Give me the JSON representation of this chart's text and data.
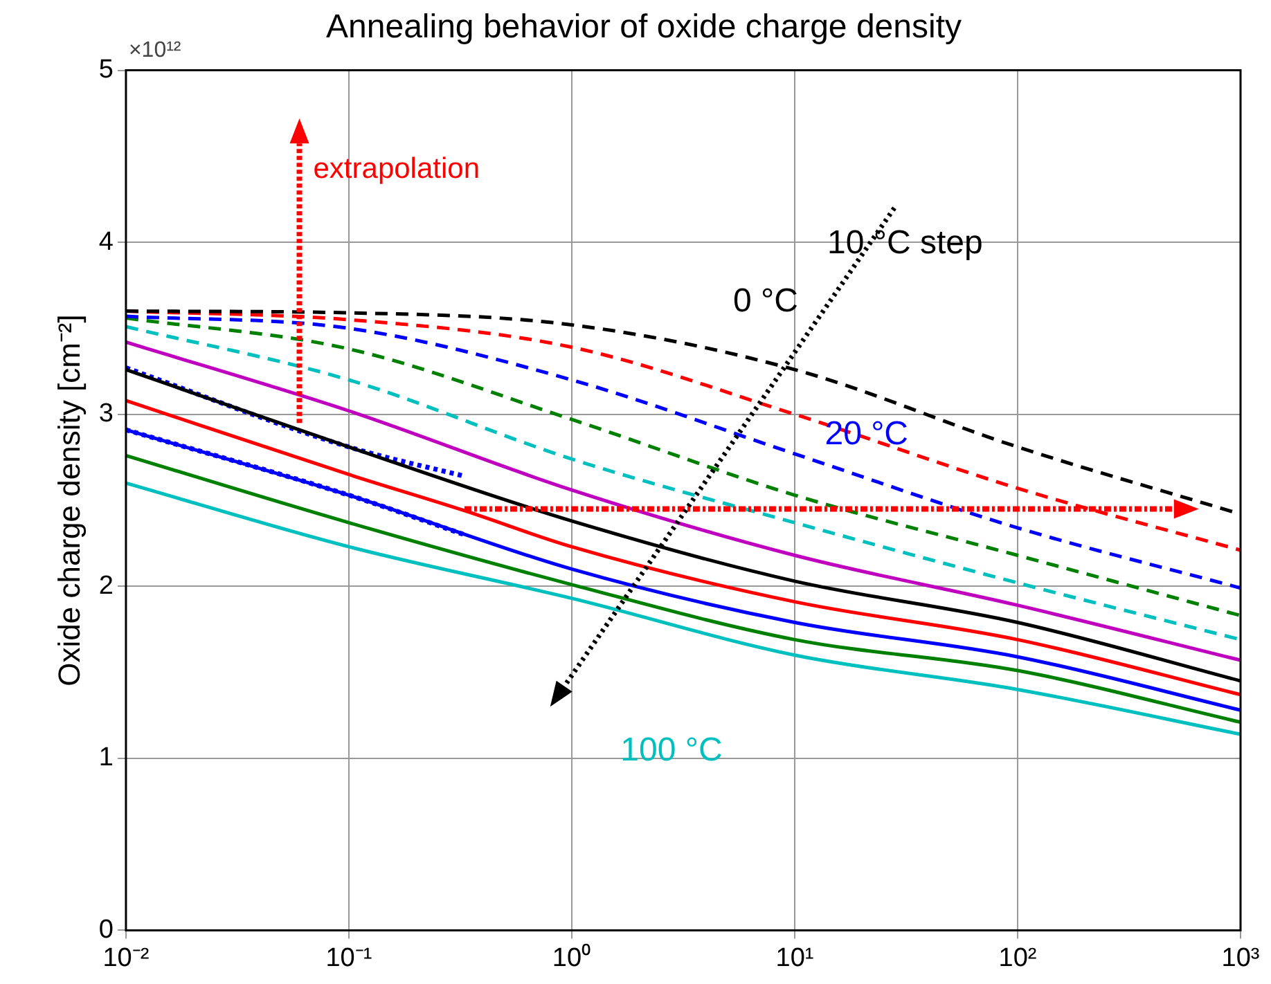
{
  "chart_data": {
    "type": "line",
    "title": "Annealing behavior of oxide charge density",
    "ylabel": "Oxide charge density [cm⁻²]",
    "log": "x",
    "xlim": [
      0.01,
      1000
    ],
    "ylim": [
      0,
      5
    ],
    "xticks": [
      {
        "value": 0.01,
        "label": "10⁻²"
      },
      {
        "value": 0.1,
        "label": "10⁻¹"
      },
      {
        "value": 1,
        "label": "10⁰"
      },
      {
        "value": 10,
        "label": "10¹"
      },
      {
        "value": 100,
        "label": "10²"
      },
      {
        "value": 1000,
        "label": "10³"
      }
    ],
    "yticks": [
      0,
      1,
      2,
      3,
      4,
      5
    ],
    "grid": true,
    "legend": false,
    "marker": "none",
    "x": [
      0.01,
      0.1,
      1,
      10,
      100,
      1000
    ],
    "series": [
      {
        "color": "#000000",
        "line_style": "dashed",
        "values": [
          3.6,
          3.59,
          3.52,
          3.26,
          2.81,
          2.42
        ]
      },
      {
        "color": "#ff0000",
        "line_style": "dashed",
        "values": [
          3.6,
          3.55,
          3.39,
          3.0,
          2.57,
          2.21
        ]
      },
      {
        "color": "#0000ff",
        "line_style": "dashed",
        "values": [
          3.57,
          3.5,
          3.2,
          2.77,
          2.34,
          1.99
        ]
      },
      {
        "color": "#008000",
        "line_style": "dashed",
        "values": [
          3.56,
          3.38,
          2.97,
          2.53,
          2.18,
          1.83
        ]
      },
      {
        "color": "#00bfbf",
        "line_style": "dashed",
        "values": [
          3.51,
          3.2,
          2.74,
          2.37,
          2.02,
          1.69
        ]
      },
      {
        "color": "#bf00bf",
        "line_style": "solid",
        "values": [
          3.42,
          3.02,
          2.56,
          2.18,
          1.89,
          1.57
        ]
      },
      {
        "color": "#000000",
        "line_style": "solid",
        "values": [
          3.26,
          2.81,
          2.38,
          2.03,
          1.79,
          1.45
        ]
      },
      {
        "color": "#ff0000",
        "line_style": "solid",
        "x": [
          0.01,
          0.1,
          0.33,
          1,
          10,
          100,
          1000
        ],
        "values": [
          3.08,
          2.65,
          2.44,
          2.23,
          1.91,
          1.69,
          1.37
        ]
      },
      {
        "color": "#0000ff",
        "line_style": "solid",
        "values": [
          2.91,
          2.53,
          2.1,
          1.79,
          1.59,
          1.28
        ]
      },
      {
        "color": "#008000",
        "line_style": "solid",
        "values": [
          2.76,
          2.37,
          2.01,
          1.69,
          1.51,
          1.21
        ]
      },
      {
        "color": "#00bfbf",
        "line_style": "solid",
        "values": [
          2.6,
          2.23,
          1.93,
          1.6,
          1.4,
          1.14
        ]
      },
      {
        "color": "#0000ff",
        "line_style": "dotted",
        "x": [
          0.01,
          0.1,
          0.33
        ],
        "values": [
          2.91,
          2.53,
          2.3
        ]
      },
      {
        "color": "#0000ff",
        "line_style": "dotted",
        "x": [
          0.01,
          0.1,
          0.33
        ],
        "values": [
          3.27,
          2.81,
          2.64
        ]
      }
    ],
    "annotations": [
      "×10¹²",
      {
        "text": "extrapolation",
        "x": 0.06,
        "y": 2.95
      },
      "10 °C step",
      "0 °C",
      "20 °C",
      "100 °C"
    ]
  }
}
